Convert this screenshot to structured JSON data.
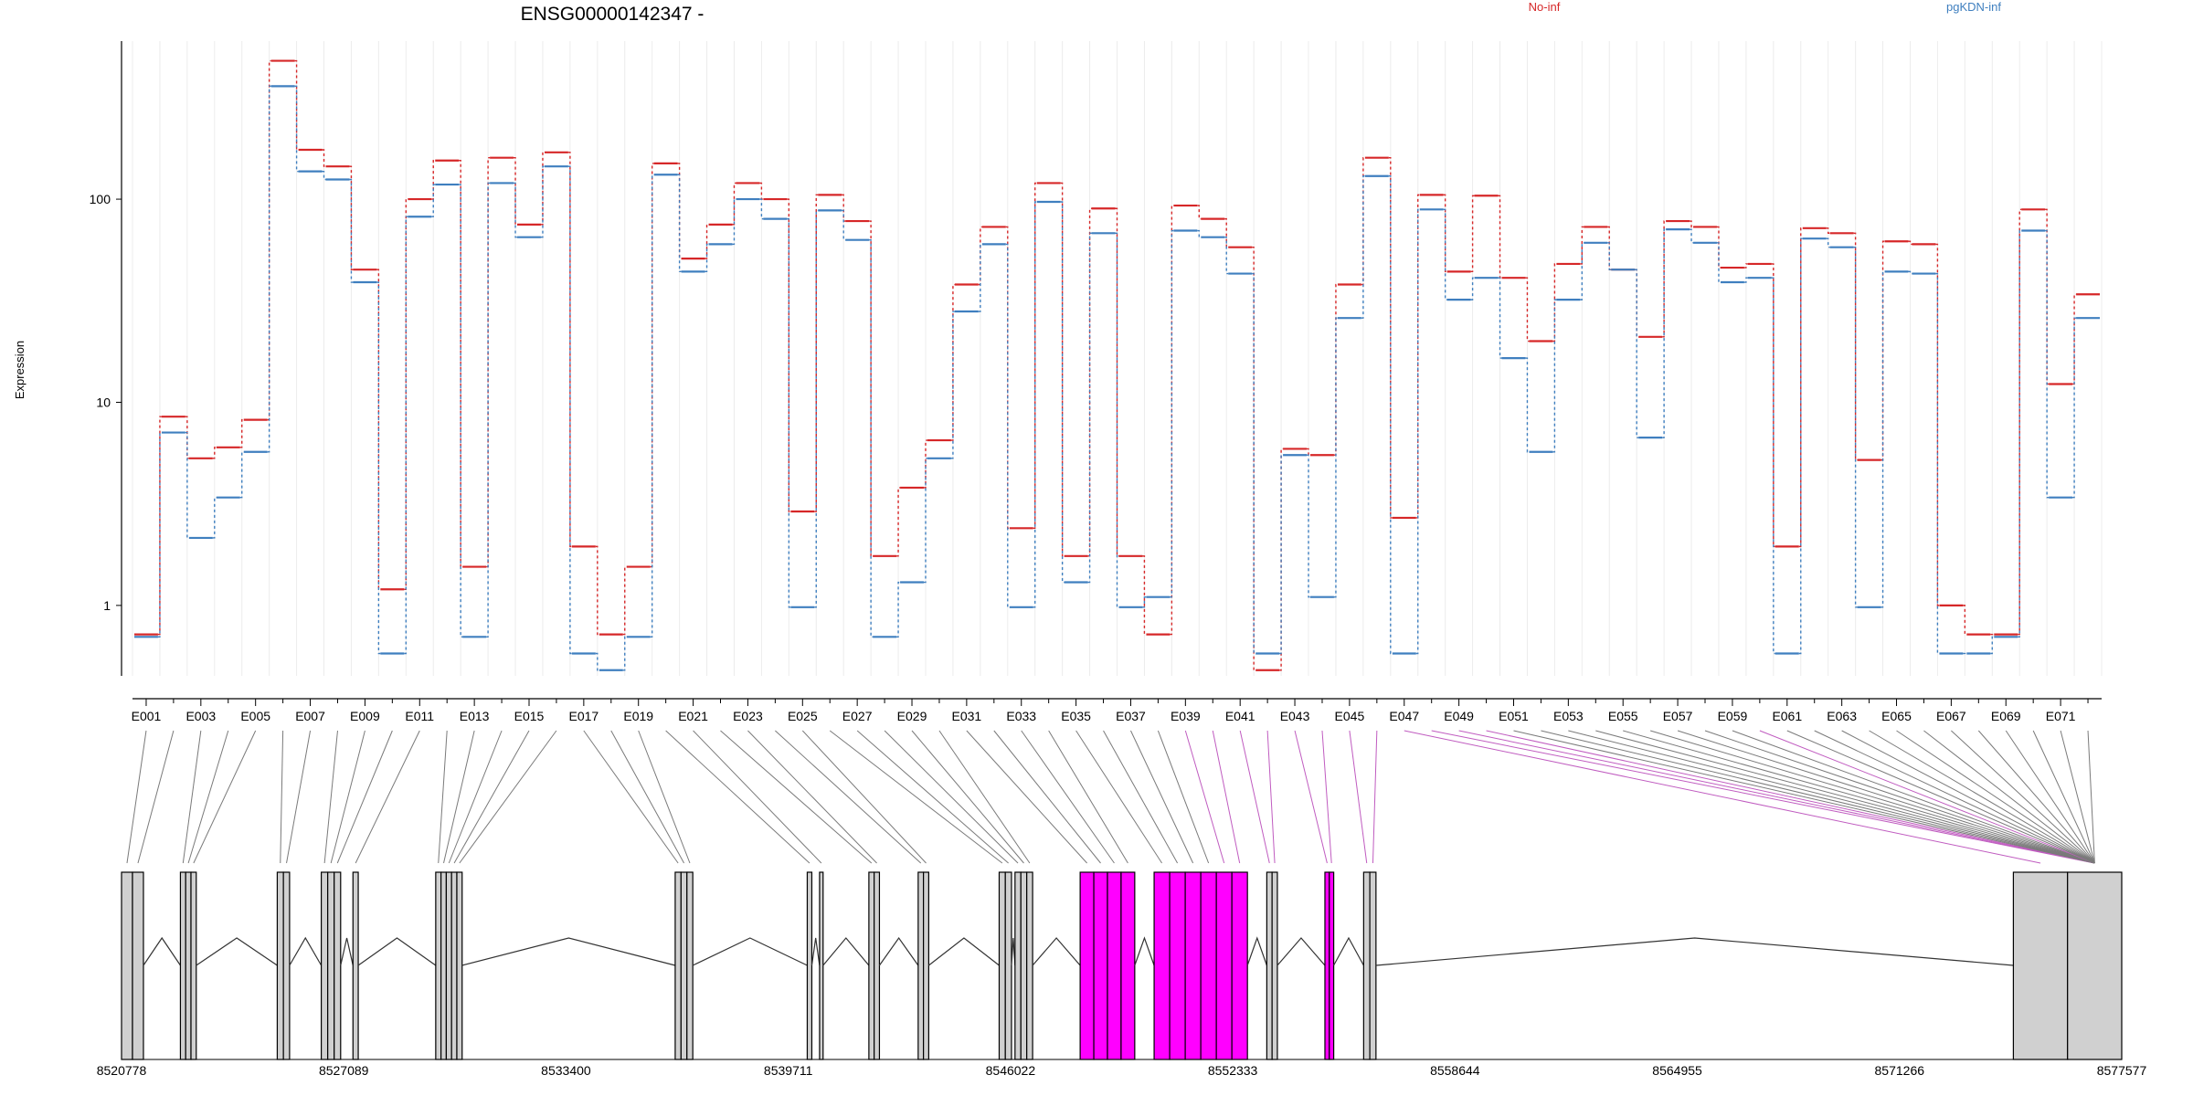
{
  "chart_data": {
    "type": "line",
    "title": "ENSG00000142347 -",
    "ylabel": "Expression",
    "yscale": "log",
    "ylim": [
      0.45,
      600
    ],
    "yticks": [
      1,
      10,
      100
    ],
    "ytick_labels": [
      "1",
      "10",
      "100"
    ],
    "colors": {
      "No-inf": "#d62728",
      "pgKDN-inf": "#3f7fbf",
      "highlight": "#ff00ff"
    },
    "legend": [
      "No-inf",
      "pgKDN-inf"
    ],
    "legend_position": "top",
    "categories": [
      "E001",
      "E002",
      "E003",
      "E004",
      "E005",
      "E006",
      "E007",
      "E008",
      "E009",
      "E010",
      "E011",
      "E012",
      "E013",
      "E014",
      "E015",
      "E016",
      "E017",
      "E018",
      "E019",
      "E020",
      "E021",
      "E022",
      "E023",
      "E024",
      "E025",
      "E026",
      "E027",
      "E028",
      "E029",
      "E030",
      "E031",
      "E032",
      "E033",
      "E034",
      "E035",
      "E036",
      "E037",
      "E038",
      "E039",
      "E040",
      "E041",
      "E042",
      "E043",
      "E044",
      "E045",
      "E046",
      "E047",
      "E048",
      "E049",
      "E050",
      "E051",
      "E052",
      "E053",
      "E054",
      "E055",
      "E056",
      "E057",
      "E058",
      "E059",
      "E060",
      "E061",
      "E062",
      "E063",
      "E064",
      "E065",
      "E066",
      "E067",
      "E068",
      "E069",
      "E070",
      "E071",
      "E072"
    ],
    "xtick_labels": [
      "E001",
      "E003",
      "E005",
      "E007",
      "E009",
      "E011",
      "E013",
      "E015",
      "E017",
      "E019",
      "E021",
      "E023",
      "E025",
      "E027",
      "E029",
      "E031",
      "E033",
      "E035",
      "E037",
      "E039",
      "E041",
      "E043",
      "E045",
      "E047",
      "E049",
      "E051",
      "E053",
      "E055",
      "E057",
      "E059",
      "E061",
      "E063",
      "E065",
      "E067",
      "E069",
      "E071"
    ],
    "series": [
      {
        "name": "No-inf",
        "values": [
          0.72,
          8.5,
          5.3,
          6.0,
          8.2,
          480,
          175,
          145,
          45,
          1.2,
          100,
          155,
          1.55,
          160,
          75,
          170,
          1.95,
          0.72,
          1.55,
          150,
          51,
          75,
          120,
          100,
          2.9,
          105,
          78,
          1.75,
          3.8,
          6.5,
          38,
          73,
          2.4,
          120,
          1.75,
          90,
          1.75,
          0.72,
          93,
          80,
          58,
          0.48,
          5.9,
          5.5,
          38,
          160,
          2.7,
          105,
          44,
          104,
          41,
          20,
          48,
          73,
          45,
          21,
          78,
          73,
          46,
          48,
          1.95,
          72,
          68,
          5.2,
          62,
          60,
          1.0,
          0.72,
          0.72,
          89,
          12.3,
          34
        ]
      },
      {
        "name": "pgKDN-inf",
        "values": [
          0.7,
          7.1,
          2.15,
          3.4,
          5.7,
          360,
          137,
          125,
          39,
          0.58,
          82,
          118,
          0.7,
          120,
          65,
          145,
          0.58,
          0.48,
          0.7,
          132,
          44,
          60,
          100,
          80,
          0.98,
          88,
          63,
          0.7,
          1.3,
          5.3,
          28,
          60,
          0.98,
          97,
          1.3,
          68,
          0.98,
          1.1,
          70,
          65,
          43,
          0.58,
          5.5,
          1.1,
          26,
          130,
          0.58,
          89,
          32,
          41,
          16.5,
          5.7,
          32,
          61,
          45,
          6.7,
          71,
          61,
          39,
          41,
          0.58,
          64,
          58,
          0.98,
          44,
          43,
          0.58,
          0.58,
          0.7,
          70,
          3.4,
          26
        ]
      }
    ],
    "genomic_ticks": [
      "8520778",
      "8527089",
      "8533400",
      "8539711",
      "8546022",
      "8552333",
      "8558644",
      "8564955",
      "8571266",
      "8577577"
    ],
    "genomic_range": [
      8520778,
      8577577
    ],
    "highlighted_exons": [
      "E039",
      "E040",
      "E041",
      "E042",
      "E043",
      "E044",
      "E045",
      "E046",
      "E047",
      "E048",
      "E049",
      "E050",
      "E060"
    ]
  }
}
